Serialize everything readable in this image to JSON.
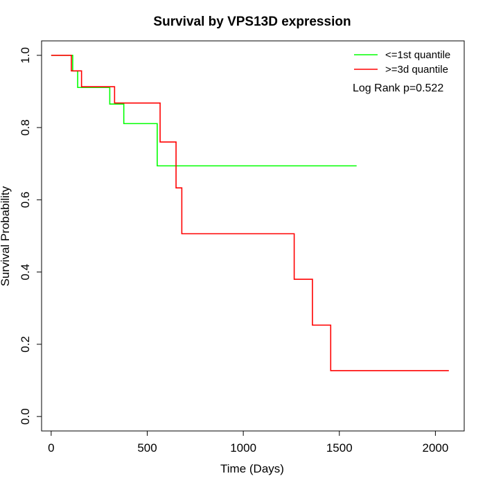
{
  "chart_data": {
    "type": "line",
    "step": true,
    "title": "Survival by VPS13D expression",
    "xlabel": "Time (Days)",
    "ylabel": "Survival Probability",
    "xlim": [
      -50,
      2150
    ],
    "ylim": [
      -0.04,
      1.04
    ],
    "x_ticks": [
      0,
      500,
      1000,
      1500,
      2000
    ],
    "x_tick_labels": [
      "0",
      "500",
      "1000",
      "1500",
      "2000"
    ],
    "y_ticks": [
      0.0,
      0.2,
      0.4,
      0.6,
      0.8,
      1.0
    ],
    "y_tick_labels": [
      "0.0",
      "0.2",
      "0.4",
      "0.6",
      "0.8",
      "1.0"
    ],
    "grid": false,
    "legend_position": "top-right",
    "annotation": "Log Rank p=0.522",
    "series": [
      {
        "name": "<=1st quantile",
        "color": "#00ff00",
        "x": [
          0,
          112,
          138,
          305,
          378,
          552,
          1590
        ],
        "y": [
          1.0,
          0.957,
          0.911,
          0.865,
          0.811,
          0.694,
          0.694
        ]
      },
      {
        "name": ">=3d quantile",
        "color": "#ff0000",
        "x": [
          0,
          105,
          158,
          330,
          567,
          650,
          680,
          1265,
          1360,
          1455,
          2070
        ],
        "y": [
          1.0,
          0.957,
          0.913,
          0.868,
          0.76,
          0.633,
          0.506,
          0.38,
          0.253,
          0.127,
          0.127
        ]
      }
    ]
  }
}
